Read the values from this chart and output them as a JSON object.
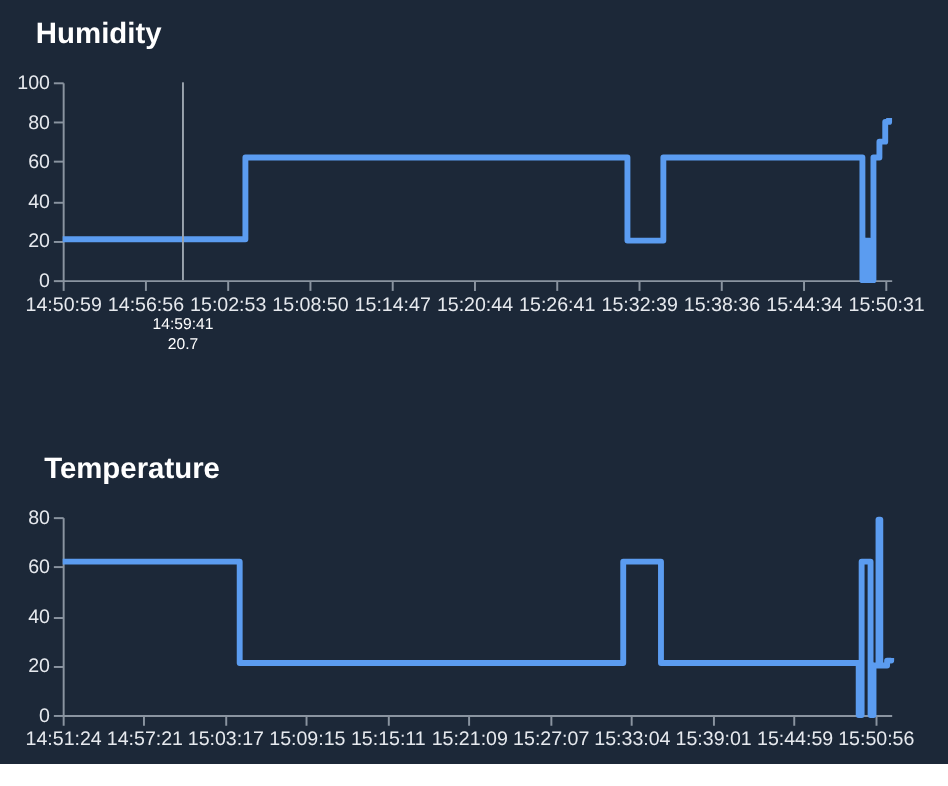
{
  "chart_data": [
    {
      "type": "step",
      "title": "Humidity",
      "series": [
        {
          "color": "#5b9cf0",
          "x": [
            14.8497,
            15.07,
            15.5306,
            15.5739,
            15.8139,
            15.8178,
            15.8225,
            15.8272,
            15.8344,
            15.8414,
            15.8461
          ],
          "values": [
            20.7,
            62,
            20,
            62,
            0,
            20,
            0,
            62,
            70,
            80,
            82
          ]
        }
      ],
      "xlim": [
        14.8497,
        15.8486
      ],
      "xticks": [
        {
          "value": 14.84972,
          "label": "14:50:59"
        },
        {
          "value": 14.94889,
          "label": "14:56:56"
        },
        {
          "value": 15.04806,
          "label": "15:02:53"
        },
        {
          "value": 15.14722,
          "label": "15:08:50"
        },
        {
          "value": 15.24639,
          "label": "15:14:47"
        },
        {
          "value": 15.34556,
          "label": "15:20:44"
        },
        {
          "value": 15.44472,
          "label": "15:26:41"
        },
        {
          "value": 15.54417,
          "label": "15:32:39"
        },
        {
          "value": 15.64333,
          "label": "15:38:36"
        },
        {
          "value": 15.74278,
          "label": "15:44:34"
        },
        {
          "value": 15.84194,
          "label": "15:50:31"
        }
      ],
      "ylim": [
        0,
        100
      ],
      "yticks": [
        0,
        20,
        40,
        60,
        80,
        100
      ],
      "ref_lines": [
        {
          "axis": "x",
          "value": 14.99472,
          "color": "#9aa3ad"
        }
      ],
      "annotations": [
        "14:59:41",
        "20.7"
      ],
      "grid": false,
      "legend": false,
      "marker": "none",
      "line_style": "solid"
    },
    {
      "type": "step",
      "title": "Temperature",
      "series": [
        {
          "color": "#5b9cf0",
          "x": [
            14.8567,
            15.0728,
            15.5411,
            15.5872,
            15.8286,
            15.8322,
            15.8431,
            15.8467,
            15.8528,
            15.855,
            15.8633,
            15.8683
          ],
          "values": [
            62,
            21,
            62,
            21,
            0,
            62,
            0,
            20,
            79,
            20,
            22,
            23
          ]
        }
      ],
      "xlim": [
        14.85667,
        15.8683
      ],
      "xticks": [
        {
          "value": 14.85667,
          "label": "14:51:24"
        },
        {
          "value": 14.95583,
          "label": "14:57:21"
        },
        {
          "value": 15.05472,
          "label": "15:03:17"
        },
        {
          "value": 15.15417,
          "label": "15:09:15"
        },
        {
          "value": 15.25306,
          "label": "15:15:11"
        },
        {
          "value": 15.3525,
          "label": "15:21:09"
        },
        {
          "value": 15.45194,
          "label": "15:27:07"
        },
        {
          "value": 15.55111,
          "label": "15:33:04"
        },
        {
          "value": 15.65028,
          "label": "15:39:01"
        },
        {
          "value": 15.74972,
          "label": "15:44:59"
        },
        {
          "value": 15.84889,
          "label": "15:50:56"
        }
      ],
      "ylim": [
        0,
        80
      ],
      "yticks": [
        0,
        20,
        40,
        60,
        80
      ],
      "grid": false,
      "legend": false,
      "marker": "none",
      "line_style": "solid"
    }
  ]
}
